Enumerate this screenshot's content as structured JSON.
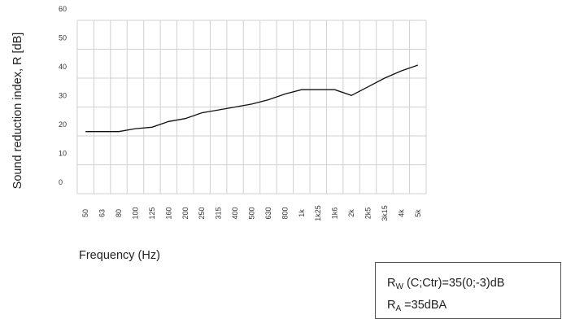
{
  "chart_data": {
    "type": "line",
    "title": "",
    "ylabel": "Sound reduction index, R [dB]",
    "xlabel": "Frequency (Hz)",
    "ylim": [
      0,
      60
    ],
    "yticks": [
      0,
      10,
      20,
      30,
      40,
      50,
      60
    ],
    "categories": [
      "50",
      "63",
      "80",
      "100",
      "125",
      "160",
      "200",
      "250",
      "315",
      "400",
      "500",
      "630",
      "800",
      "1k",
      "1k25",
      "1k6",
      "2k",
      "2k5",
      "3k15",
      "4k",
      "5k"
    ],
    "values": [
      21.5,
      21.5,
      21.5,
      22.5,
      23,
      25,
      26,
      28,
      29,
      30,
      31,
      32.5,
      34.5,
      36,
      36,
      36,
      34,
      37,
      40,
      42.5,
      44.5
    ],
    "grid": true,
    "line_color": "#111111",
    "grid_color": "#d0d0d0"
  },
  "rating": {
    "rw_symbol": "R",
    "rw_sub": "W",
    "rw_text": " (C;Ctr)=35(0;-3)dB",
    "ra_symbol": "R",
    "ra_sub": "A",
    "ra_text": " =35dBA"
  }
}
